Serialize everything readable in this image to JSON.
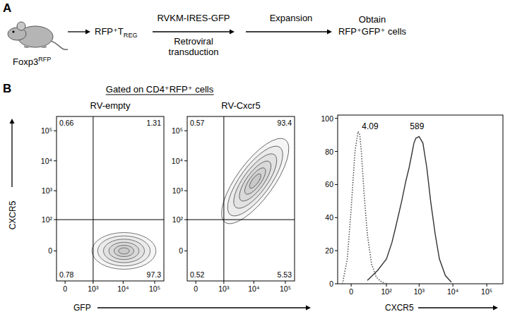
{
  "panel_a": {
    "label": "A",
    "mouse_label": {
      "text": "Foxp3",
      "sup": "RFP"
    },
    "cells": {
      "text": "RFP⁺T",
      "sub": "REG"
    },
    "transduction": {
      "above": "RVKM-IRES-GFP",
      "below": [
        "Retroviral",
        "transduction"
      ]
    },
    "expansion": "Expansion",
    "result": [
      "Obtain",
      "RFP⁺GFP⁺ cells"
    ]
  },
  "panel_b": {
    "label": "B",
    "gate_title": "Gated on CD4⁺RFP⁺ cells",
    "y_label": "CXCR5",
    "x_label": "GFP"
  },
  "chart_data": [
    {
      "type": "contour",
      "title": "RV-empty",
      "log": true,
      "xlim": [
        -130,
        195000
      ],
      "ylim": [
        -90,
        300000
      ],
      "xticks": [
        0,
        {
          "value": 1000,
          "label": "10³"
        },
        {
          "value": 10000,
          "label": "10⁴"
        },
        {
          "value": 100000,
          "label": "10⁵"
        }
      ],
      "yticks": [
        0,
        {
          "value": 100,
          "label": "10²"
        },
        {
          "value": 1000,
          "label": "10³"
        },
        {
          "value": 10000,
          "label": "10⁴"
        },
        {
          "value": 100000,
          "label": "10⁵"
        }
      ],
      "gates": {
        "x": 1000,
        "y": 100
      },
      "quadrants": {
        "upper_left": 0.66,
        "upper_right": 1.31,
        "lower_left": 0.78,
        "lower_right": 97.3
      },
      "population": {
        "x": [
          900,
          110000
        ],
        "y": [
          0,
          0
        ]
      },
      "color": "#555555"
    },
    {
      "type": "contour",
      "title": "RV-Cxcr5",
      "log": true,
      "xlim": [
        -130,
        195000
      ],
      "ylim": [
        -90,
        300000
      ],
      "xticks": [
        0,
        {
          "value": 1000,
          "label": "10³"
        },
        {
          "value": 10000,
          "label": "10⁴"
        },
        {
          "value": 100000,
          "label": "10⁵"
        }
      ],
      "yticks": [
        0,
        {
          "value": 100,
          "label": "10²"
        },
        {
          "value": 1000,
          "label": "10³"
        },
        {
          "value": 10000,
          "label": "10⁴"
        },
        {
          "value": 100000,
          "label": "10⁵"
        }
      ],
      "gates": {
        "x": 1000,
        "y": 100
      },
      "quadrants": {
        "upper_left": 0.57,
        "upper_right": 93.4,
        "lower_left": 0.52,
        "lower_right": 5.53
      },
      "population": {
        "x": [
          1100,
          100000
        ],
        "y": [
          80,
          50000
        ]
      },
      "color": "#555555"
    },
    {
      "type": "line",
      "log": "x",
      "x_label": "CXCR5",
      "xlim": [
        -15,
        300000
      ],
      "ylim": [
        0,
        102
      ],
      "xticks": [
        0,
        {
          "value": 100,
          "label": "10²"
        },
        {
          "value": 1000,
          "label": "10³"
        },
        {
          "value": 10000,
          "label": "10⁴"
        },
        {
          "value": 100000,
          "label": "10⁵"
        }
      ],
      "yticks": [
        0,
        20,
        40,
        60,
        80,
        100
      ],
      "series": [
        {
          "line_style": "dotted",
          "color": "#555555",
          "mfi": 4.09,
          "x": [
            -8,
            -3,
            0,
            3,
            6,
            8,
            10,
            14,
            20,
            30,
            45,
            70,
            100
          ],
          "values": [
            0,
            15,
            45,
            80,
            92,
            90,
            80,
            55,
            30,
            12,
            4,
            1,
            0
          ]
        },
        {
          "line_style": "solid",
          "color": "#333333",
          "mfi": 589,
          "x": [
            20,
            50,
            100,
            150,
            200,
            300,
            400,
            500,
            600,
            700,
            800,
            1000,
            1300,
            1700,
            2200,
            3000,
            4000,
            6000,
            9000
          ],
          "values": [
            2,
            8,
            15,
            25,
            35,
            50,
            62,
            70,
            78,
            85,
            88,
            89,
            85,
            70,
            50,
            30,
            15,
            5,
            1
          ]
        }
      ]
    }
  ]
}
